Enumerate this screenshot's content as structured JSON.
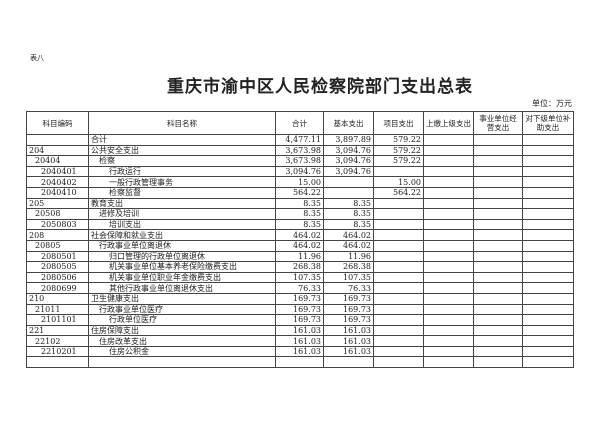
{
  "doc": {
    "tag": "表八",
    "title": "重庆市渝中区人民检察院部门支出总表",
    "unit": "单位：万元"
  },
  "headers": [
    "科目编码",
    "科目名称",
    "合计",
    "基本支出",
    "项目支出",
    "上缴上级支出",
    "事业单位经营支出",
    "对下级单位补助支出"
  ],
  "rows": [
    {
      "code": "",
      "name": "合计",
      "level": 0,
      "total": "4,477.11",
      "basic": "3,897.89",
      "project": "579.22"
    },
    {
      "code": "204",
      "name": "公共安全支出",
      "level": 0,
      "total": "3,673.98",
      "basic": "3,094.76",
      "project": "579.22"
    },
    {
      "code": "20404",
      "name": "检察",
      "level": 1,
      "total": "3,673.98",
      "basic": "3,094.76",
      "project": "579.22"
    },
    {
      "code": "2040401",
      "name": "行政运行",
      "level": 2,
      "total": "3,094.76",
      "basic": "3,094.76",
      "project": ""
    },
    {
      "code": "2040402",
      "name": "一般行政管理事务",
      "level": 2,
      "total": "15.00",
      "basic": "",
      "project": "15.00"
    },
    {
      "code": "2040410",
      "name": "检察监督",
      "level": 2,
      "total": "564.22",
      "basic": "",
      "project": "564.22"
    },
    {
      "code": "205",
      "name": "教育支出",
      "level": 0,
      "total": "8.35",
      "basic": "8.35",
      "project": ""
    },
    {
      "code": "20508",
      "name": "进修及培训",
      "level": 1,
      "total": "8.35",
      "basic": "8.35",
      "project": ""
    },
    {
      "code": "2050803",
      "name": "培训支出",
      "level": 2,
      "total": "8.35",
      "basic": "8.35",
      "project": ""
    },
    {
      "code": "208",
      "name": "社会保障和就业支出",
      "level": 0,
      "total": "464.02",
      "basic": "464.02",
      "project": ""
    },
    {
      "code": "20805",
      "name": "行政事业单位离退休",
      "level": 1,
      "total": "464.02",
      "basic": "464.02",
      "project": ""
    },
    {
      "code": "2080501",
      "name": "归口管理的行政单位离退休",
      "level": 2,
      "total": "11.96",
      "basic": "11.96",
      "project": ""
    },
    {
      "code": "2080505",
      "name": "机关事业单位基本养老保险缴费支出",
      "level": 2,
      "total": "268.38",
      "basic": "268.38",
      "project": ""
    },
    {
      "code": "2080506",
      "name": "机关事业单位职业年金缴费支出",
      "level": 2,
      "total": "107.35",
      "basic": "107.35",
      "project": ""
    },
    {
      "code": "2080699",
      "name": "其他行政事业单位离退休支出",
      "level": 2,
      "total": "76.33",
      "basic": "76.33",
      "project": ""
    },
    {
      "code": "210",
      "name": "卫生健康支出",
      "level": 0,
      "total": "169.73",
      "basic": "169.73",
      "project": ""
    },
    {
      "code": "21011",
      "name": "行政事业单位医疗",
      "level": 1,
      "total": "169.73",
      "basic": "169.73",
      "project": ""
    },
    {
      "code": "2101101",
      "name": "行政单位医疗",
      "level": 2,
      "total": "169.73",
      "basic": "169.73",
      "project": ""
    },
    {
      "code": "221",
      "name": "住房保障支出",
      "level": 0,
      "total": "161.03",
      "basic": "161.03",
      "project": ""
    },
    {
      "code": "22102",
      "name": "住房改革支出",
      "level": 1,
      "total": "161.03",
      "basic": "161.03",
      "project": ""
    },
    {
      "code": "2210201",
      "name": "住房公积金",
      "level": 2,
      "total": "161.03",
      "basic": "161.03",
      "project": ""
    }
  ]
}
